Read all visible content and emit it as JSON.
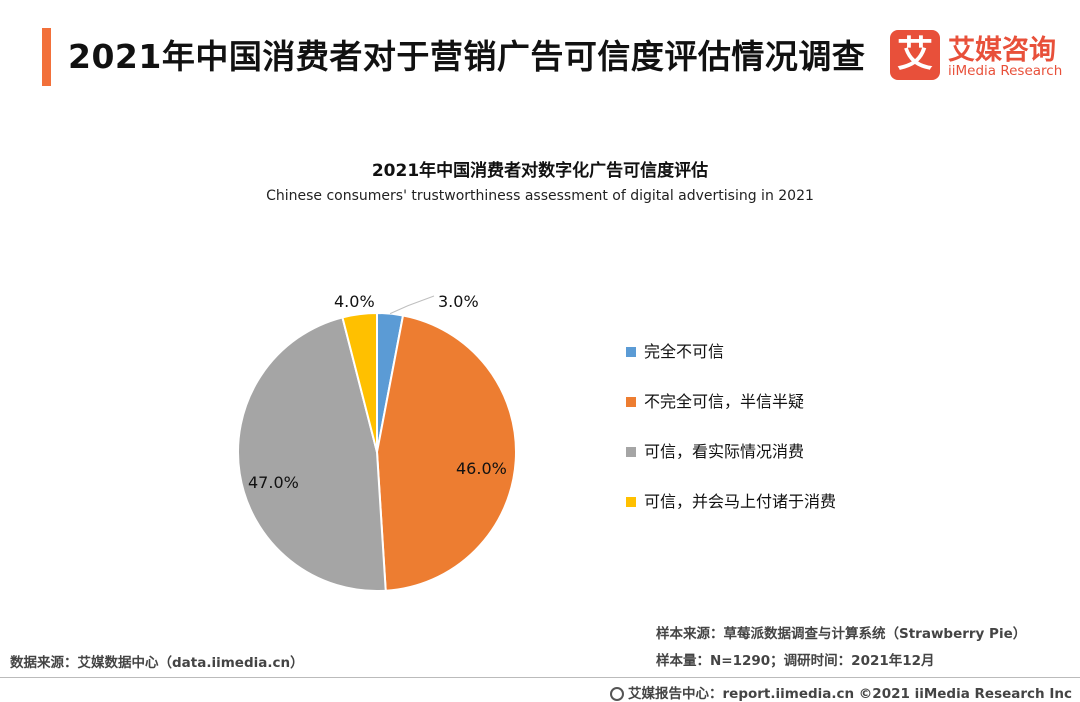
{
  "header": {
    "title": "2021年中国消费者对于营销广告可信度评估情况调查",
    "accent_color": "#F2703A"
  },
  "logo": {
    "mark": "艾",
    "name_cn": "艾媒咨询",
    "name_en": "iiMedia Research",
    "color": "#E8503A"
  },
  "chart_data": {
    "type": "pie",
    "title": "2021年中国消费者对数字化广告可信度评估",
    "subtitle": "Chinese consumers' trustworthiness assessment of digital advertising in 2021",
    "legend_position": "right",
    "slices": [
      {
        "label": "完全不可信",
        "value": 3.0,
        "display": "3.0%",
        "color": "#5B9BD5"
      },
      {
        "label": "不完全可信，半信半疑",
        "value": 46.0,
        "display": "46.0%",
        "color": "#ED7D31"
      },
      {
        "label": "可信，看实际情况消费",
        "value": 47.0,
        "display": "47.0%",
        "color": "#A5A5A5"
      },
      {
        "label": "可信，并会马上付诸于消费",
        "value": 4.0,
        "display": "4.0%",
        "color": "#FFC000"
      }
    ]
  },
  "footnotes": {
    "sample_source": "样本来源：草莓派数据调查与计算系统（Strawberry Pie）",
    "sample_size": "样本量：N=1290；调研时间：2021年12月",
    "data_source": "数据来源：艾媒数据中心（data.iimedia.cn）"
  },
  "footer": {
    "text": "艾媒报告中心：report.iimedia.cn ©2021  iiMedia Research  Inc"
  }
}
